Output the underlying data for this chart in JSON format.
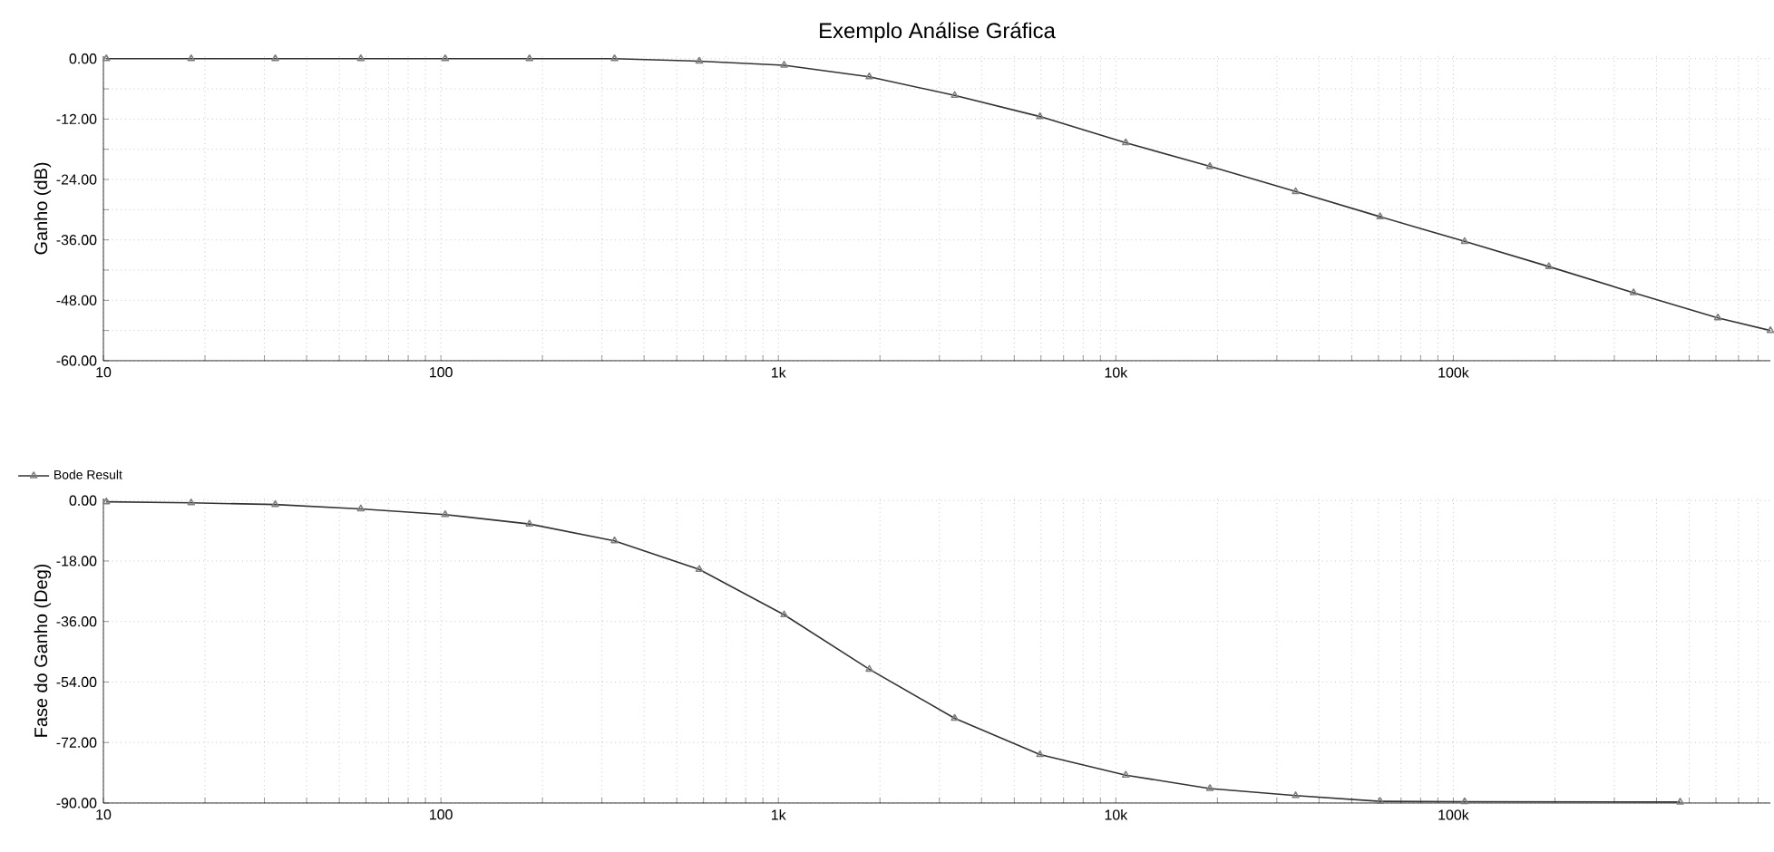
{
  "chart_data": [
    {
      "type": "line",
      "title": "Exemplo Análise Gráfica",
      "ylabel": "Ganho (dB)",
      "log": "x",
      "grid": true,
      "marker": "triangle",
      "line_style": "solid",
      "xlim": [
        10,
        870000
      ],
      "ylim": [
        -60,
        0.5
      ],
      "xticks": [
        {
          "value": 10,
          "label": "10"
        },
        {
          "value": 20,
          "label": null
        },
        {
          "value": 30,
          "label": null
        },
        {
          "value": 40,
          "label": null
        },
        {
          "value": 50,
          "label": null
        },
        {
          "value": 60,
          "label": null
        },
        {
          "value": 70,
          "label": null
        },
        {
          "value": 80,
          "label": null
        },
        {
          "value": 90,
          "label": null
        },
        {
          "value": 100,
          "label": "100"
        },
        {
          "value": 200,
          "label": null
        },
        {
          "value": 300,
          "label": null
        },
        {
          "value": 400,
          "label": null
        },
        {
          "value": 500,
          "label": null
        },
        {
          "value": 600,
          "label": null
        },
        {
          "value": 700,
          "label": null
        },
        {
          "value": 800,
          "label": null
        },
        {
          "value": 900,
          "label": null
        },
        {
          "value": 1000,
          "label": "1k"
        },
        {
          "value": 2000,
          "label": null
        },
        {
          "value": 3000,
          "label": null
        },
        {
          "value": 4000,
          "label": null
        },
        {
          "value": 5000,
          "label": null
        },
        {
          "value": 6000,
          "label": null
        },
        {
          "value": 7000,
          "label": null
        },
        {
          "value": 8000,
          "label": null
        },
        {
          "value": 9000,
          "label": null
        },
        {
          "value": 10000,
          "label": "10k"
        },
        {
          "value": 20000,
          "label": null
        },
        {
          "value": 30000,
          "label": null
        },
        {
          "value": 40000,
          "label": null
        },
        {
          "value": 50000,
          "label": null
        },
        {
          "value": 60000,
          "label": null
        },
        {
          "value": 70000,
          "label": null
        },
        {
          "value": 80000,
          "label": null
        },
        {
          "value": 90000,
          "label": null
        },
        {
          "value": 100000,
          "label": "100k"
        },
        {
          "value": 200000,
          "label": null
        },
        {
          "value": 300000,
          "label": null
        },
        {
          "value": 400000,
          "label": null
        },
        {
          "value": 500000,
          "label": null
        },
        {
          "value": 600000,
          "label": null
        },
        {
          "value": 700000,
          "label": null
        },
        {
          "value": 800000,
          "label": null
        }
      ],
      "yticks": [
        {
          "value": 0,
          "label": "0.00"
        },
        {
          "value": -6,
          "label": null
        },
        {
          "value": -12,
          "label": "-12.00"
        },
        {
          "value": -18,
          "label": null
        },
        {
          "value": -24,
          "label": "-24.00"
        },
        {
          "value": -30,
          "label": null
        },
        {
          "value": -36,
          "label": "-36.00"
        },
        {
          "value": -42,
          "label": null
        },
        {
          "value": -48,
          "label": "-48.00"
        },
        {
          "value": -54,
          "label": null
        },
        {
          "value": -60,
          "label": "-60.00"
        }
      ],
      "series": [
        {
          "color": "#333333",
          "x": [
            10.2,
            18.2,
            32.3,
            57.9,
            103,
            183,
            327,
            583,
            1040,
            1860,
            3330,
            5960,
            10700,
            19000,
            34100,
            60700,
            108000,
            192000,
            342000,
            608000,
            870000
          ],
          "values": [
            0,
            0,
            0,
            0,
            0,
            0,
            0,
            -0.5,
            -1.3,
            -3.6,
            -7.3,
            -11.5,
            -16.7,
            -21.4,
            -26.4,
            -31.4,
            -36.3,
            -41.3,
            -46.5,
            -51.5,
            -54.0
          ]
        }
      ]
    },
    {
      "type": "line",
      "ylabel": "Fase do Ganho (Deg)",
      "log": "x",
      "grid": true,
      "marker": "triangle",
      "line_style": "solid",
      "legend": "top left",
      "xlim": [
        10,
        870000
      ],
      "ylim": [
        -90,
        0.6
      ],
      "xticks": [
        {
          "value": 10,
          "label": "10"
        },
        {
          "value": 20,
          "label": null
        },
        {
          "value": 30,
          "label": null
        },
        {
          "value": 40,
          "label": null
        },
        {
          "value": 50,
          "label": null
        },
        {
          "value": 60,
          "label": null
        },
        {
          "value": 70,
          "label": null
        },
        {
          "value": 80,
          "label": null
        },
        {
          "value": 90,
          "label": null
        },
        {
          "value": 100,
          "label": "100"
        },
        {
          "value": 200,
          "label": null
        },
        {
          "value": 300,
          "label": null
        },
        {
          "value": 400,
          "label": null
        },
        {
          "value": 500,
          "label": null
        },
        {
          "value": 600,
          "label": null
        },
        {
          "value": 700,
          "label": null
        },
        {
          "value": 800,
          "label": null
        },
        {
          "value": 900,
          "label": null
        },
        {
          "value": 1000,
          "label": "1k"
        },
        {
          "value": 2000,
          "label": null
        },
        {
          "value": 3000,
          "label": null
        },
        {
          "value": 4000,
          "label": null
        },
        {
          "value": 5000,
          "label": null
        },
        {
          "value": 6000,
          "label": null
        },
        {
          "value": 7000,
          "label": null
        },
        {
          "value": 8000,
          "label": null
        },
        {
          "value": 9000,
          "label": null
        },
        {
          "value": 10000,
          "label": "10k"
        },
        {
          "value": 20000,
          "label": null
        },
        {
          "value": 30000,
          "label": null
        },
        {
          "value": 40000,
          "label": null
        },
        {
          "value": 50000,
          "label": null
        },
        {
          "value": 60000,
          "label": null
        },
        {
          "value": 70000,
          "label": null
        },
        {
          "value": 80000,
          "label": null
        },
        {
          "value": 90000,
          "label": null
        },
        {
          "value": 100000,
          "label": "100k"
        },
        {
          "value": 200000,
          "label": null
        },
        {
          "value": 300000,
          "label": null
        },
        {
          "value": 400000,
          "label": null
        },
        {
          "value": 500000,
          "label": null
        },
        {
          "value": 600000,
          "label": null
        },
        {
          "value": 700000,
          "label": null
        },
        {
          "value": 800000,
          "label": null
        }
      ],
      "yticks": [
        {
          "value": 0,
          "label": "0.00"
        },
        {
          "value": -18,
          "label": "-18.00"
        },
        {
          "value": -36,
          "label": "-36.00"
        },
        {
          "value": -54,
          "label": "-54.00"
        },
        {
          "value": -72,
          "label": "-72.00"
        },
        {
          "value": -90,
          "label": "-90.00"
        }
      ],
      "series": [
        {
          "name": "Bode Result",
          "color": "#333333",
          "x": [
            10.2,
            18.2,
            32.3,
            57.9,
            103,
            183,
            327,
            583,
            1040,
            1860,
            3330,
            5960,
            10700,
            19000,
            34100,
            60700,
            108000,
            470000
          ],
          "values": [
            -0.4,
            -0.7,
            -1.2,
            -2.5,
            -4.2,
            -7.0,
            -12.0,
            -20.5,
            -34.0,
            -50.2,
            -64.8,
            -75.6,
            -81.7,
            -85.7,
            -87.8,
            -89.5,
            -89.6,
            -89.7
          ]
        }
      ]
    }
  ]
}
